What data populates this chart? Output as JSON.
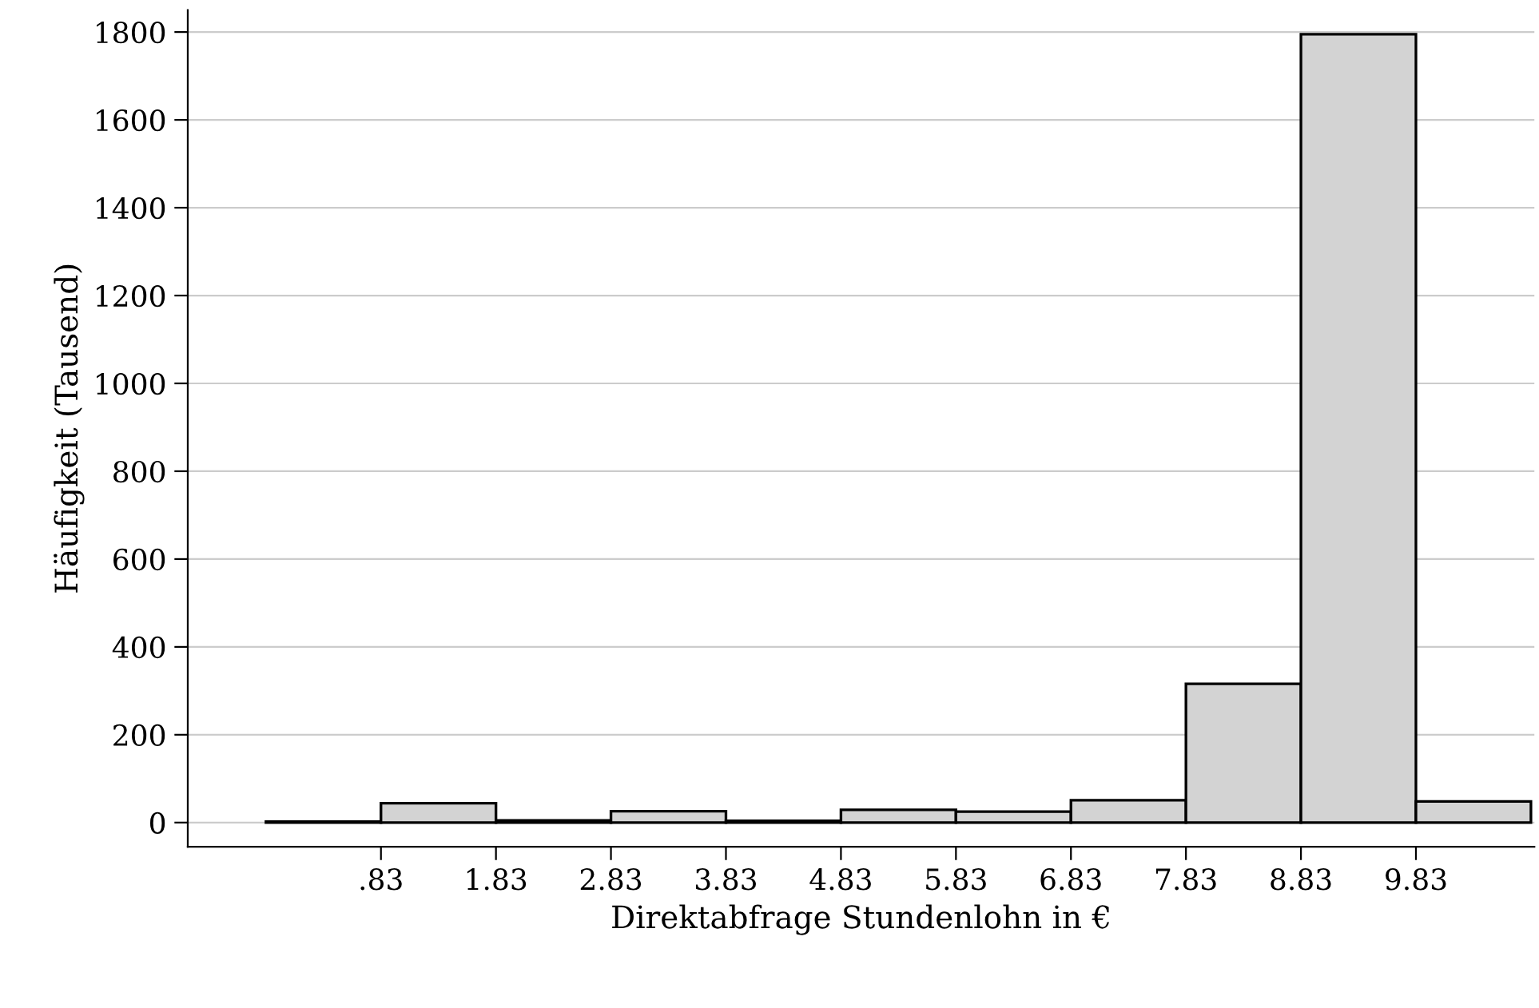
{
  "chart_data": {
    "type": "histogram",
    "xlabel": "Direktabfrage Stundenlohn in €",
    "ylabel": "Häufigkeit (Tausend)",
    "bins": [
      -0.17,
      0.83,
      1.83,
      2.83,
      3.83,
      4.83,
      5.83,
      6.83,
      7.83,
      8.83,
      9.83,
      10.83
    ],
    "values": [
      2,
      44,
      5,
      26,
      4,
      29,
      25,
      51,
      316,
      1795,
      48
    ],
    "color": "#d3d3d3",
    "xlim": [
      -0.85,
      10.86
    ],
    "ylim": [
      -55,
      1850
    ],
    "xticks": [
      {
        "value": 0.83,
        "label": ".83"
      },
      1.83,
      2.83,
      3.83,
      4.83,
      5.83,
      6.83,
      7.83,
      8.83,
      9.83
    ],
    "yticks": [
      0,
      200,
      400,
      600,
      800,
      1000,
      1200,
      1400,
      1600,
      1800
    ],
    "grid": "y"
  }
}
